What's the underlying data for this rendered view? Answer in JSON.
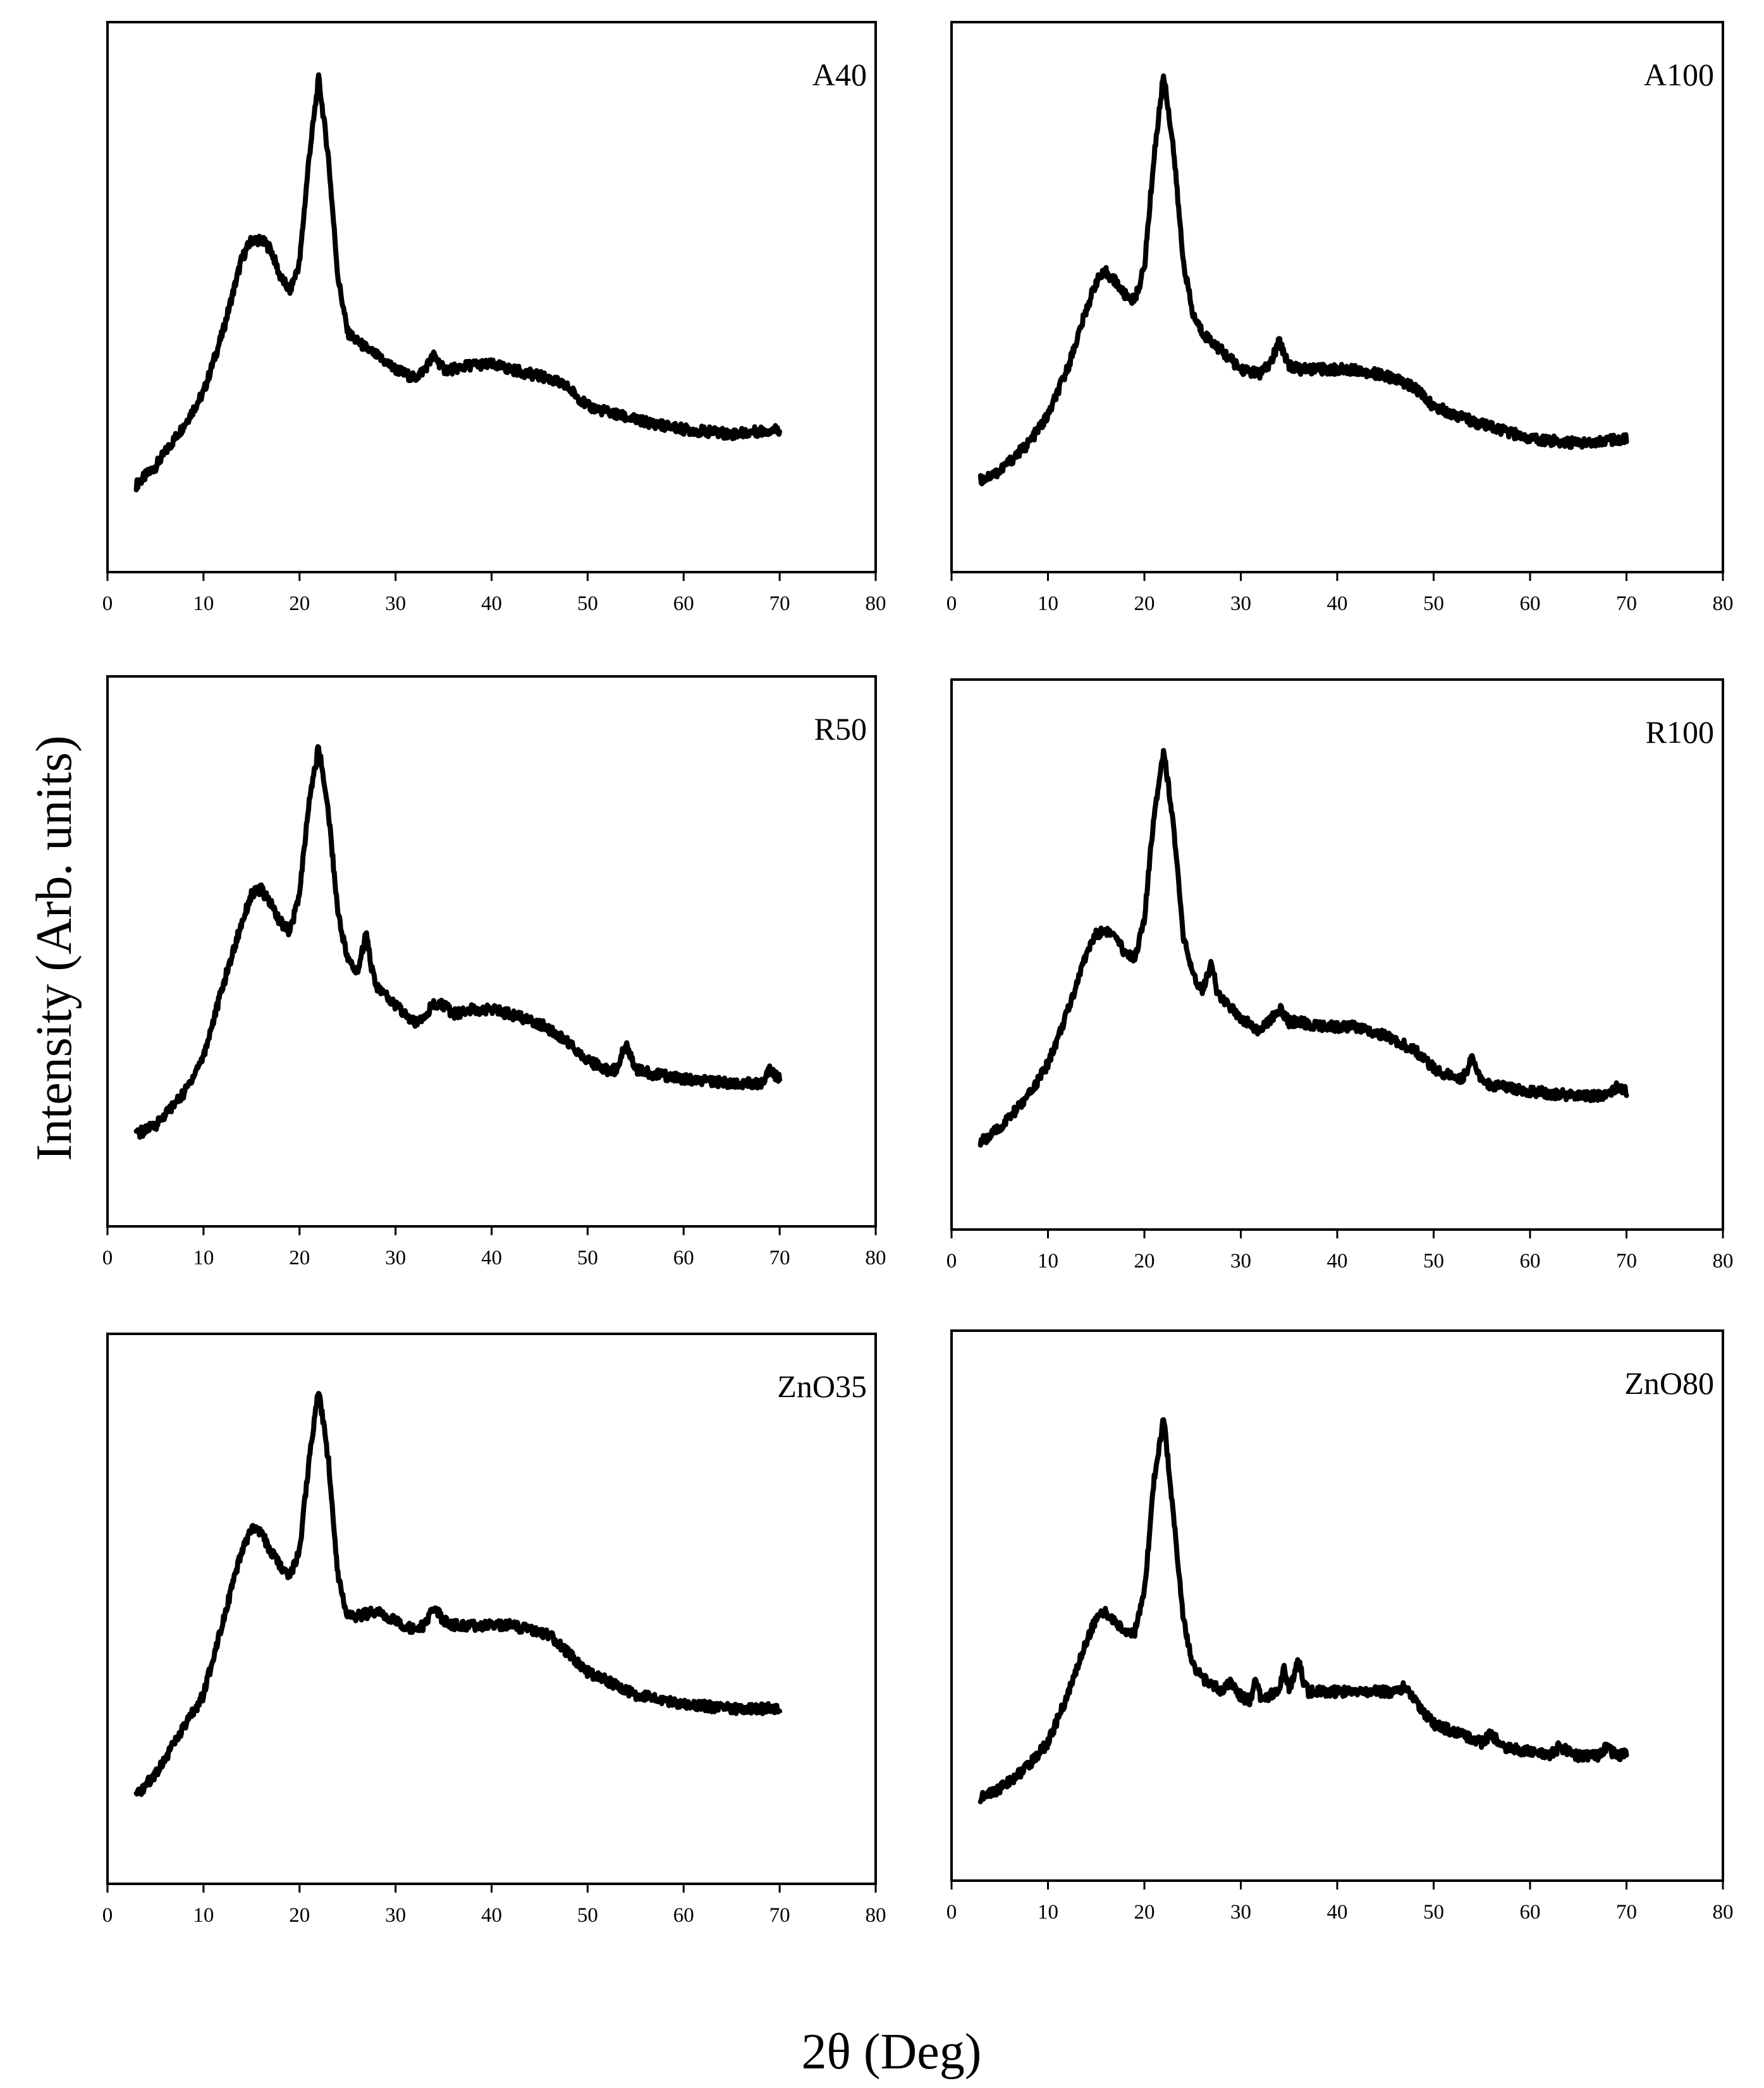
{
  "figure": {
    "ylabel": "Intensity (Arb. units)",
    "xlabel": "2θ (Deg)"
  },
  "chart_data": [
    {
      "type": "line",
      "label": "A40",
      "xlim": [
        0,
        80
      ],
      "xticks": [
        0,
        10,
        20,
        30,
        40,
        50,
        60,
        70,
        80
      ],
      "ylim": [
        0,
        100
      ],
      "xlabel": "2θ (Deg)",
      "ylabel": "Intensity (Arb. units)",
      "x": [
        3,
        5,
        8,
        10,
        12,
        14,
        15,
        16,
        17,
        18,
        19,
        20,
        21,
        22,
        23,
        24,
        25,
        26,
        28,
        30,
        32,
        33,
        34,
        35,
        36,
        38,
        40,
        42,
        44,
        46,
        48,
        50,
        55,
        60,
        65,
        70
      ],
      "y": [
        7,
        11,
        20,
        27,
        40,
        56,
        60,
        60,
        58,
        52,
        49,
        55,
        78,
        95,
        78,
        52,
        40,
        38,
        35,
        32,
        30,
        32,
        35,
        32,
        32,
        33,
        33,
        32,
        31,
        30,
        28,
        24,
        21,
        19,
        18,
        19
      ]
    },
    {
      "type": "line",
      "label": "A100",
      "xlim": [
        0,
        80
      ],
      "xticks": [
        0,
        10,
        20,
        30,
        40,
        50,
        60,
        70,
        80
      ],
      "ylim": [
        0,
        100
      ],
      "xlabel": "2θ (Deg)",
      "ylabel": "Intensity (Arb. units)",
      "x": [
        3,
        5,
        8,
        10,
        12,
        14,
        15,
        16,
        17,
        18,
        19,
        20,
        21,
        22,
        23,
        24,
        25,
        26,
        28,
        30,
        32,
        33,
        34,
        35,
        36,
        38,
        40,
        42,
        44,
        46,
        48,
        50,
        55,
        60,
        65,
        70
      ],
      "y": [
        8,
        10,
        16,
        22,
        32,
        45,
        51,
        53,
        51,
        48,
        47,
        54,
        78,
        96,
        80,
        56,
        44,
        40,
        36,
        32,
        31,
        33,
        38,
        33,
        32,
        32,
        32,
        32,
        31,
        30,
        28,
        24,
        20,
        17,
        16,
        17
      ]
    },
    {
      "type": "line",
      "label": "R50",
      "xlim": [
        0,
        80
      ],
      "xticks": [
        0,
        10,
        20,
        30,
        40,
        50,
        60,
        70,
        80
      ],
      "ylim": [
        0,
        100
      ],
      "xlabel": "2θ (Deg)",
      "ylabel": "Intensity (Arb. units)",
      "x": [
        3,
        5,
        8,
        10,
        12,
        14,
        15,
        16,
        17,
        18,
        19,
        20,
        21,
        22,
        23,
        24,
        25,
        26,
        27,
        27.5,
        28,
        30,
        32,
        34,
        35,
        36,
        38,
        40,
        42,
        45,
        48,
        50,
        52,
        53,
        54,
        55,
        57,
        60,
        65,
        68,
        69,
        70
      ],
      "y": [
        8,
        10,
        17,
        25,
        40,
        54,
        60,
        61,
        58,
        54,
        52,
        60,
        80,
        92,
        78,
        56,
        46,
        43,
        52,
        44,
        40,
        36,
        32,
        36,
        36,
        34,
        35,
        35,
        34,
        32,
        28,
        24,
        22,
        22,
        28,
        22,
        21,
        20,
        19,
        19,
        22,
        20
      ]
    },
    {
      "type": "line",
      "label": "R100",
      "xlim": [
        0,
        80
      ],
      "xticks": [
        0,
        10,
        20,
        30,
        40,
        50,
        60,
        70,
        80
      ],
      "ylim": [
        0,
        100
      ],
      "xlabel": "2θ (Deg)",
      "ylabel": "Intensity (Arb. units)",
      "x": [
        3,
        5,
        8,
        10,
        12,
        14,
        15,
        16,
        17,
        18,
        19,
        20,
        21,
        22,
        23,
        24,
        25,
        26,
        27,
        27.5,
        28,
        30,
        32,
        34,
        35,
        36,
        38,
        40,
        42,
        45,
        48,
        50,
        52,
        53,
        54,
        55,
        57,
        60,
        65,
        68,
        69,
        70
      ],
      "y": [
        7,
        10,
        17,
        24,
        35,
        48,
        52,
        53,
        51,
        48,
        47,
        55,
        78,
        92,
        76,
        52,
        43,
        40,
        46,
        40,
        38,
        34,
        31,
        36,
        33,
        33,
        32,
        32,
        32,
        30,
        27,
        23,
        21,
        21,
        25,
        20,
        19,
        18,
        17,
        17,
        19,
        18
      ]
    },
    {
      "type": "line",
      "label": "ZnO35",
      "xlim": [
        0,
        80
      ],
      "xticks": [
        0,
        10,
        20,
        30,
        40,
        50,
        60,
        70,
        80
      ],
      "ylim": [
        0,
        100
      ],
      "xlabel": "2θ (Deg)",
      "ylabel": "Intensity (Arb. units)",
      "x": [
        3,
        5,
        8,
        10,
        12,
        14,
        15,
        16,
        17,
        18,
        19,
        20,
        21,
        22,
        23,
        24,
        25,
        26,
        28,
        30,
        32,
        33,
        34,
        35,
        36,
        38,
        40,
        42,
        44,
        46,
        48,
        50,
        55,
        60,
        65,
        70
      ],
      "y": [
        7,
        12,
        22,
        29,
        45,
        60,
        65,
        64,
        60,
        57,
        55,
        60,
        80,
        95,
        80,
        55,
        46,
        46,
        47,
        45,
        43,
        44,
        48,
        45,
        44,
        44,
        44,
        44,
        43,
        42,
        38,
        34,
        29,
        27,
        26,
        26
      ]
    },
    {
      "type": "line",
      "label": "ZnO80",
      "xlim": [
        0,
        80
      ],
      "xticks": [
        0,
        10,
        20,
        30,
        40,
        50,
        60,
        70,
        80
      ],
      "ylim": [
        0,
        100
      ],
      "xlabel": "2θ (Deg)",
      "ylabel": "Intensity (Arb. units)",
      "x": [
        3,
        5,
        8,
        10,
        12,
        14,
        15,
        16,
        17,
        18,
        19,
        20,
        21,
        22,
        23,
        24,
        25,
        26,
        28,
        29,
        30,
        31,
        31.5,
        32,
        33,
        34,
        34.5,
        35,
        35.5,
        36,
        36.5,
        37,
        38,
        40,
        42,
        44,
        46,
        47,
        48,
        50,
        55,
        56,
        57,
        60,
        62,
        63,
        65,
        67,
        68,
        69,
        70
      ],
      "y": [
        6,
        8,
        13,
        18,
        28,
        40,
        45,
        46,
        44,
        42,
        42,
        50,
        75,
        88,
        68,
        45,
        35,
        32,
        29,
        31,
        28,
        27,
        32,
        28,
        28,
        30,
        34,
        30,
        32,
        36,
        31,
        29,
        29,
        29,
        29,
        29,
        29,
        30,
        27,
        22,
        18,
        20,
        17,
        16,
        15,
        17,
        15,
        15,
        17,
        15,
        16
      ]
    }
  ]
}
